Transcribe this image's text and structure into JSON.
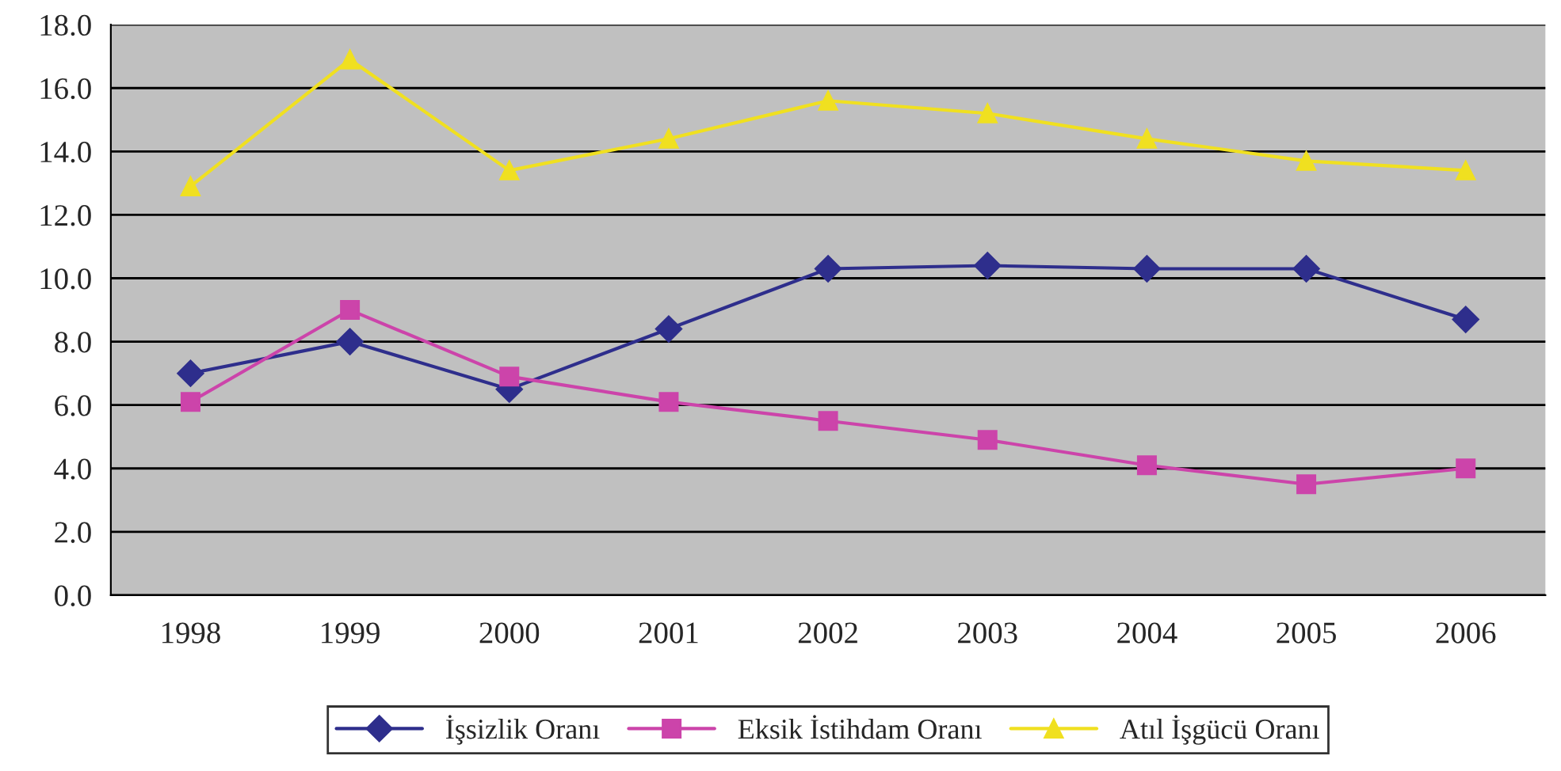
{
  "chart_data": {
    "type": "line",
    "categories": [
      "1998",
      "1999",
      "2000",
      "2001",
      "2002",
      "2003",
      "2004",
      "2005",
      "2006"
    ],
    "series": [
      {
        "name": "İşsizlik Oranı",
        "color": "#2e2e8c",
        "marker": "diamond",
        "values": [
          7.0,
          8.0,
          6.5,
          8.4,
          10.3,
          10.4,
          10.3,
          10.3,
          8.7
        ]
      },
      {
        "name": "Eksik İstihdam Oranı",
        "color": "#cc44aa",
        "marker": "square",
        "values": [
          6.1,
          9.0,
          6.9,
          6.1,
          5.5,
          4.9,
          4.1,
          3.5,
          4.0
        ]
      },
      {
        "name": "Atıl İşgücü Oranı",
        "color": "#f0e020",
        "marker": "triangle",
        "values": [
          12.9,
          16.9,
          13.4,
          14.4,
          15.6,
          15.2,
          14.4,
          13.7,
          13.4
        ]
      }
    ],
    "ylim": [
      0,
      18
    ],
    "yticks": [
      {
        "value": 0,
        "label": "0.0"
      },
      {
        "value": 2,
        "label": "2.0"
      },
      {
        "value": 4,
        "label": "4.0"
      },
      {
        "value": 6,
        "label": "6.0"
      },
      {
        "value": 8,
        "label": "8.0"
      },
      {
        "value": 10,
        "label": "10.0"
      },
      {
        "value": 12,
        "label": "12.0"
      },
      {
        "value": 14,
        "label": "14.0"
      },
      {
        "value": 16,
        "label": "16.0"
      },
      {
        "value": 18,
        "label": "18.0"
      }
    ],
    "grid": "y",
    "legend": "bottom",
    "line_style": "solid"
  }
}
